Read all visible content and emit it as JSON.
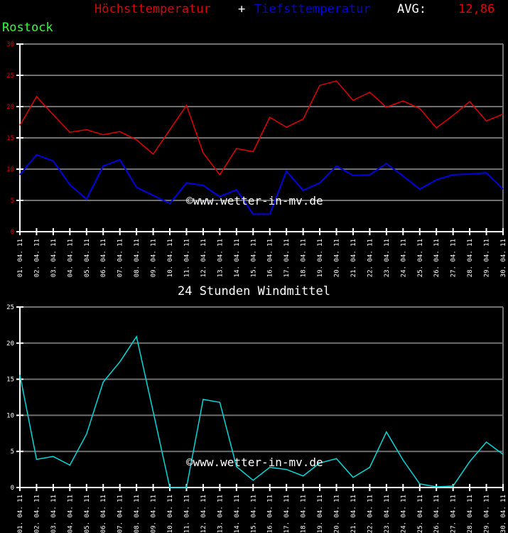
{
  "header": {
    "high_label": "Höchsttemperatur",
    "plus": "+",
    "low_label": "Tiefsttemperatur",
    "avg_label": "AVG:",
    "avg_value": "12,86",
    "city": "Rostock"
  },
  "colors": {
    "background": "#000000",
    "high": "#e00000",
    "low": "#0000e0",
    "wind": "#00d8d8",
    "grid": "#707070",
    "axis": "#ffffff",
    "city": "#33ff33",
    "temp_tick_labels": "#e00000",
    "wind_tick_labels": "#ffffff"
  },
  "watermark": "©www.wetter-in-mv.de",
  "chart_data": [
    {
      "type": "line",
      "title": "Höchsttemperatur + Tiefsttemperatur AVG: 12,86",
      "subtitle": "Rostock",
      "xlabel": "",
      "ylabel": "",
      "ylim": [
        0,
        30
      ],
      "yticks": [
        0,
        5,
        10,
        15,
        20,
        25,
        30
      ],
      "grid": true,
      "legend_position": "title",
      "categories": [
        "01. 04. 11",
        "02. 04. 11",
        "03. 04. 11",
        "04. 04. 11",
        "05. 04. 11",
        "06. 04. 11",
        "07. 04. 11",
        "08. 04. 11",
        "09. 04. 11",
        "10. 04. 11",
        "11. 04. 11",
        "12. 04. 11",
        "13. 04. 11",
        "14. 04. 11",
        "15. 04. 11",
        "16. 04. 11",
        "17. 04. 11",
        "18. 04. 11",
        "19. 04. 11",
        "20. 04. 11",
        "21. 04. 11",
        "22. 04. 11",
        "23. 04. 11",
        "24. 04. 11",
        "25. 04. 11",
        "26. 04. 11",
        "27. 04. 11",
        "28. 04. 11",
        "29. 04. 11",
        "30. 04. 11"
      ],
      "series": [
        {
          "name": "Höchsttemperatur",
          "color": "#e00000",
          "values": [
            17.0,
            21.6,
            18.7,
            15.9,
            16.3,
            15.5,
            16.0,
            14.7,
            12.4,
            16.3,
            20.2,
            12.6,
            9.1,
            13.3,
            12.8,
            18.3,
            16.7,
            18.0,
            23.4,
            24.1,
            21.0,
            22.3,
            19.9,
            20.9,
            19.7,
            16.6,
            18.6,
            20.8,
            17.7,
            18.8
          ]
        },
        {
          "name": "Tiefsttemperatur",
          "color": "#0000e0",
          "values": [
            9.1,
            12.3,
            11.3,
            7.5,
            5.2,
            10.5,
            11.5,
            7.1,
            5.8,
            4.5,
            7.8,
            7.4,
            5.6,
            6.7,
            2.8,
            2.8,
            9.7,
            6.6,
            7.8,
            10.5,
            9.0,
            9.1,
            10.9,
            8.9,
            6.8,
            8.3,
            9.1,
            9.2,
            9.4,
            6.8
          ]
        }
      ]
    },
    {
      "type": "line",
      "title": "24 Stunden Windmittel",
      "xlabel": "",
      "ylabel": "",
      "ylim": [
        0,
        25
      ],
      "yticks": [
        0,
        5,
        10,
        15,
        20,
        25
      ],
      "grid": true,
      "categories": [
        "01. 04. 11",
        "02. 04. 11",
        "03. 04. 11",
        "04. 04. 11",
        "05. 04. 11",
        "06. 04. 11",
        "07. 04. 11",
        "08. 04. 11",
        "09. 04. 11",
        "10. 04. 11",
        "11. 04. 11",
        "12. 04. 11",
        "13. 04. 11",
        "14. 04. 11",
        "15. 04. 11",
        "16. 04. 11",
        "17. 04. 11",
        "18. 04. 11",
        "19. 04. 11",
        "20. 04. 11",
        "21. 04. 11",
        "22. 04. 11",
        "23. 04. 11",
        "24. 04. 11",
        "25. 04. 11",
        "26. 04. 11",
        "27. 04. 11",
        "28. 04. 11",
        "29. 04. 11",
        "30. 04. 11"
      ],
      "series": [
        {
          "name": "Windmittel",
          "color": "#00d8d8",
          "values": [
            15.6,
            3.9,
            4.3,
            3.1,
            7.4,
            14.6,
            17.4,
            20.9,
            10.5,
            0.0,
            0.0,
            12.2,
            11.8,
            2.9,
            1.0,
            2.8,
            2.5,
            1.6,
            3.4,
            4.0,
            1.4,
            2.8,
            7.7,
            3.8,
            0.5,
            0.1,
            0.2,
            3.6,
            6.3,
            4.6
          ]
        }
      ]
    }
  ]
}
